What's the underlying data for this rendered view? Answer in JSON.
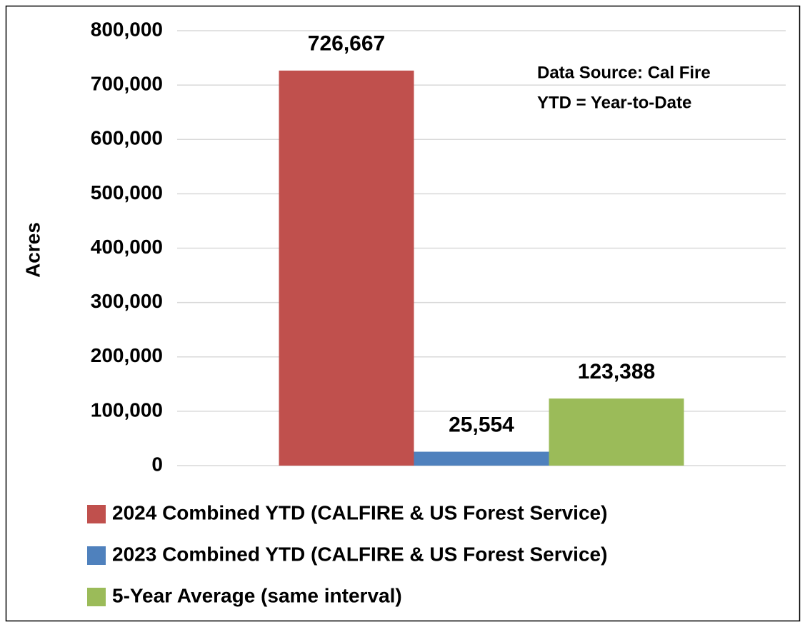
{
  "chart_data": {
    "type": "bar",
    "ylabel": "Acres",
    "annotations": [
      "Data Source: Cal Fire",
      "YTD = Year-to-Date"
    ],
    "categories": [
      null
    ],
    "series": [
      {
        "name": "2024 Combined YTD (CALFIRE & US Forest Service)",
        "color": "#c0504d",
        "values": [
          726667
        ],
        "value_labels": [
          "726,667"
        ]
      },
      {
        "name": "2023 Combined YTD (CALFIRE & US Forest Service)",
        "color": "#4f81bd",
        "values": [
          25554
        ],
        "value_labels": [
          "25,554"
        ]
      },
      {
        "name": "5-Year Average (same interval)",
        "color": "#9bbb59",
        "values": [
          123388
        ],
        "value_labels": [
          "123,388"
        ]
      }
    ],
    "ylim": [
      0,
      800000
    ],
    "yticks": [
      0,
      {
        "value": 100000,
        "label": "100,000"
      },
      {
        "value": 200000,
        "label": "200,000"
      },
      {
        "value": 300000,
        "label": "300,000"
      },
      {
        "value": 400000,
        "label": "400,000"
      },
      {
        "value": 500000,
        "label": "500,000"
      },
      {
        "value": 600000,
        "label": "600,000"
      },
      {
        "value": 700000,
        "label": "700,000"
      },
      {
        "value": 800000,
        "label": "800,000"
      }
    ],
    "grid": true,
    "legend": "bottom"
  }
}
